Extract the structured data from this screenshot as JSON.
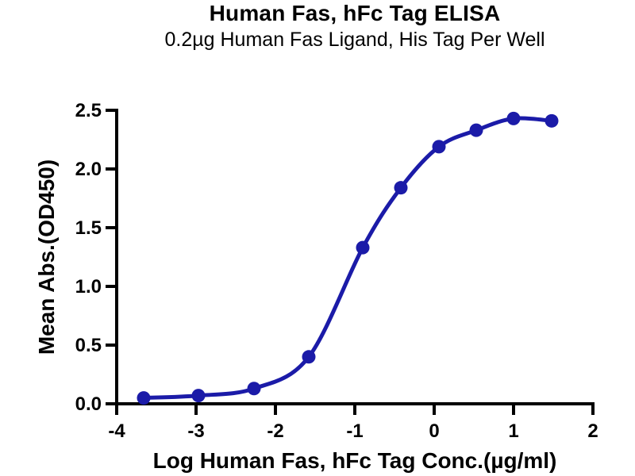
{
  "chart_data": {
    "type": "line",
    "title": "Human Fas, hFc Tag ELISA",
    "subtitle": "0.2µg Human Fas Ligand, His Tag Per Well",
    "xlabel": "Log Human Fas, hFc Tag Conc.(µg/ml)",
    "ylabel": "Mean Abs.(OD450)",
    "xlim": [
      -4,
      2
    ],
    "ylim": [
      0,
      2.5
    ],
    "grid": false,
    "legend_position": "none",
    "x_tick_values": [
      -4,
      -3,
      -2,
      -1,
      0,
      1,
      2
    ],
    "x_tick_labels": [
      "-4",
      "-3",
      "-2",
      "-1",
      "0",
      "1",
      "2"
    ],
    "y_tick_values": [
      0,
      0.5,
      1.0,
      1.5,
      2.0,
      2.5
    ],
    "y_tick_labels": [
      "0.0",
      "0.5",
      "1.0",
      "1.5",
      "2.0",
      "2.5"
    ],
    "axis_color": "#000000",
    "series": [
      {
        "name": "Human Fas, hFc Tag",
        "color": "#1b1ba8",
        "marker": "circle",
        "curve": "sigmoidal-4PL-fit",
        "x": [
          -3.66,
          -2.97,
          -2.27,
          -1.58,
          -0.9,
          -0.42,
          0.06,
          0.53,
          1.0,
          1.48
        ],
        "y": [
          0.05,
          0.07,
          0.13,
          0.4,
          1.33,
          1.84,
          2.19,
          2.33,
          2.43,
          2.41
        ]
      }
    ]
  }
}
